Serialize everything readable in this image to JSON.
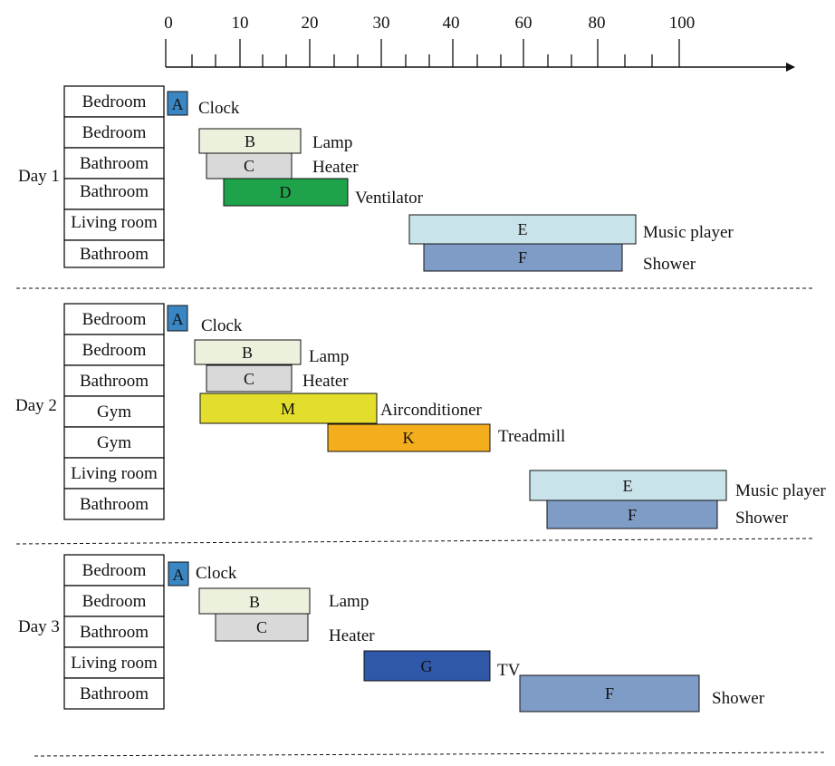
{
  "axis": {
    "tick_labels": [
      "0",
      "10",
      "20",
      "30",
      "40",
      "60",
      "80",
      "100"
    ]
  },
  "colors": {
    "A": "#3a86c3",
    "B": "#ebf1dd",
    "C": "#d9d9d9",
    "D": "#1fa34a",
    "E": "#c9e3ea",
    "F": "#7f9cc6",
    "M": "#e3de2b",
    "K": "#f4ad1d",
    "G": "#2f58a8"
  },
  "days": [
    {
      "label": "Day 1",
      "rooms": [
        "Bedroom",
        "Bedroom",
        "Bathroom",
        "Bathroom",
        "Living room",
        "Bathroom"
      ],
      "bars": [
        {
          "code": "A",
          "name": "Clock"
        },
        {
          "code": "B",
          "name": "Lamp"
        },
        {
          "code": "C",
          "name": "Heater"
        },
        {
          "code": "D",
          "name": "Ventilator"
        },
        {
          "code": "E",
          "name": "Music player"
        },
        {
          "code": "F",
          "name": "Shower"
        }
      ]
    },
    {
      "label": "Day 2",
      "rooms": [
        "Bedroom",
        "Bedroom",
        "Bathroom",
        "Gym",
        "Gym",
        "Living room",
        "Bathroom"
      ],
      "bars": [
        {
          "code": "A",
          "name": "Clock"
        },
        {
          "code": "B",
          "name": "Lamp"
        },
        {
          "code": "C",
          "name": "Heater"
        },
        {
          "code": "M",
          "name": "Airconditioner"
        },
        {
          "code": "K",
          "name": "Treadmill"
        },
        {
          "code": "E",
          "name": "Music player"
        },
        {
          "code": "F",
          "name": "Shower"
        }
      ]
    },
    {
      "label": "Day 3",
      "rooms": [
        "Bedroom",
        "Bedroom",
        "Bathroom",
        "Living room",
        "Bathroom"
      ],
      "bars": [
        {
          "code": "A",
          "name": "Clock"
        },
        {
          "code": "B",
          "name": "Lamp"
        },
        {
          "code": "C",
          "name": "Heater"
        },
        {
          "code": "G",
          "name": "TV"
        },
        {
          "code": "F",
          "name": "Shower"
        }
      ]
    }
  ]
}
